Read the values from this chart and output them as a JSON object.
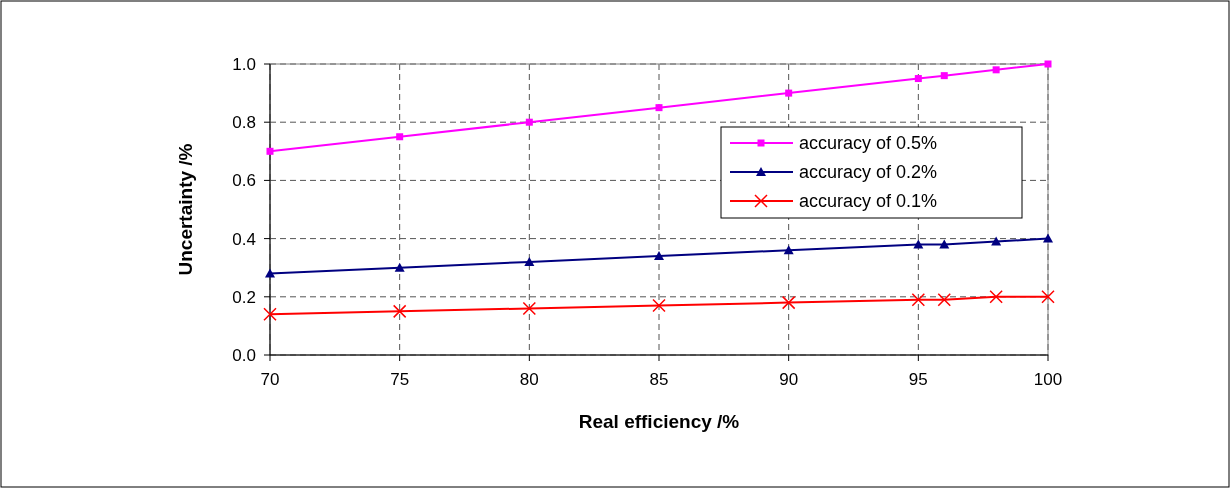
{
  "chart_data": {
    "type": "line",
    "xlabel": "Real efficiency /%",
    "ylabel": "Uncertainty /%",
    "xlim": [
      70,
      100
    ],
    "xticks": [
      70,
      75,
      80,
      85,
      90,
      95,
      100
    ],
    "ylim": [
      0,
      1
    ],
    "yticks": [
      {
        "value": 0,
        "label": "0.0"
      },
      {
        "value": 0.2,
        "label": "0.2"
      },
      {
        "value": 0.4,
        "label": "0.4"
      },
      {
        "value": 0.6,
        "label": "0.6"
      },
      {
        "value": 0.8,
        "label": "0.8"
      },
      {
        "value": 1,
        "label": "1.0"
      }
    ],
    "grid": true,
    "legend": "right",
    "line_style": "solid",
    "series": [
      {
        "name": "accuracy of 0.5%",
        "color": "#ff00ff",
        "marker": "square",
        "x": [
          70,
          75,
          80,
          85,
          90,
          95,
          96,
          98,
          100
        ],
        "values": [
          0.7,
          0.75,
          0.8,
          0.85,
          0.9,
          0.95,
          0.96,
          0.98,
          1.0
        ]
      },
      {
        "name": "accuracy of 0.2%",
        "color": "#000080",
        "marker": "triangle",
        "x": [
          70,
          75,
          80,
          85,
          90,
          95,
          96,
          98,
          100
        ],
        "values": [
          0.28,
          0.3,
          0.32,
          0.34,
          0.36,
          0.38,
          0.38,
          0.39,
          0.4
        ]
      },
      {
        "name": "accuracy of 0.1%",
        "color": "#ff0000",
        "marker": "cross",
        "x": [
          70,
          75,
          80,
          85,
          90,
          95,
          96,
          98,
          100
        ],
        "values": [
          0.14,
          0.15,
          0.16,
          0.17,
          0.18,
          0.19,
          0.19,
          0.2,
          0.2
        ]
      }
    ]
  }
}
